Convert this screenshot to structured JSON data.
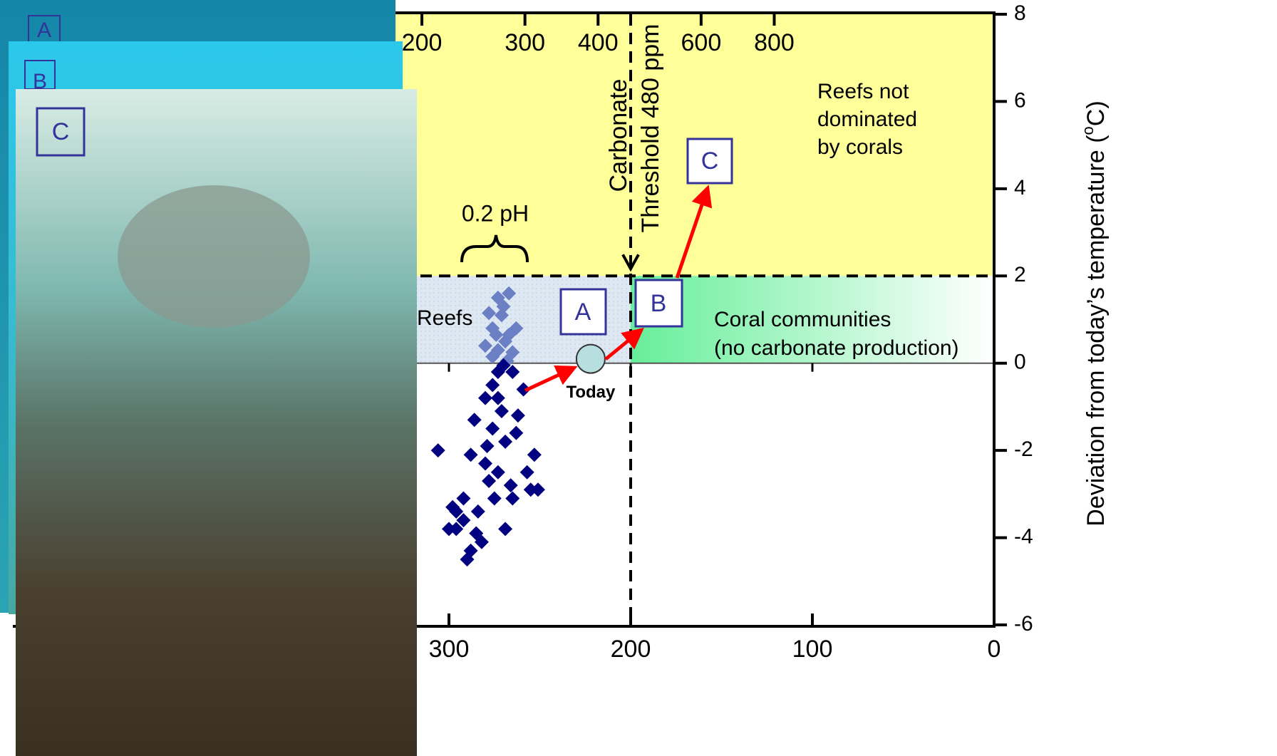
{
  "chart_data": {
    "type": "scatter",
    "xlim": [
      540,
      0
    ],
    "xticks": [
      300,
      200,
      100,
      0
    ],
    "x2lim": [
      40,
      1900
    ],
    "x2scale": "log",
    "x2ticks": [
      200,
      300,
      400,
      600,
      800
    ],
    "ylim": [
      -6,
      8
    ],
    "yticks": [
      8,
      6,
      4,
      2,
      0,
      -2,
      -4,
      -6
    ],
    "y_label": [
      "Deviation from today’s temperature (",
      "o",
      "C)"
    ],
    "series": [
      {
        "color": "#6b7fc4",
        "x": [
          267,
          273,
          271,
          276,
          267,
          273,
          276,
          265,
          278,
          269,
          274,
          263,
          270,
          280,
          268
        ],
        "values": [
          1.6,
          1.5,
          1.1,
          0.8,
          0.65,
          0.3,
          0.15,
          0.25,
          1.15,
          0.5,
          0.65,
          0.8,
          1.3,
          0.4,
          0.05
        ]
      },
      {
        "color": "#000080",
        "x": [
          259,
          273,
          276,
          269,
          280,
          292,
          296,
          288,
          290,
          265,
          253,
          255,
          306,
          273,
          284,
          300,
          276,
          265,
          271,
          280,
          263,
          288,
          275,
          269,
          296,
          282,
          257,
          251,
          286,
          273,
          278,
          262,
          292,
          270,
          285,
          298,
          266,
          279
        ],
        "values": [
          -0.6,
          -0.8,
          -1.5,
          -1.8,
          -2.3,
          -3.1,
          -3.8,
          -4.3,
          -4.5,
          -3.1,
          -2.1,
          -2.9,
          -2.0,
          -2.5,
          -3.4,
          -3.8,
          -0.5,
          -0.2,
          -1.1,
          -0.8,
          -1.6,
          -2.1,
          -3.1,
          -3.8,
          -3.4,
          -4.1,
          -2.5,
          -2.9,
          -1.3,
          -0.2,
          -2.7,
          -1.2,
          -3.6,
          -0.05,
          -3.9,
          -3.3,
          -2.8,
          -1.9
        ]
      }
    ],
    "today": {
      "label": "Today",
      "x": 222,
      "y": 0.1,
      "color": "#b8dfe0"
    },
    "thresholds": {
      "temperature": 2,
      "carbonate": 200,
      "today": 0
    },
    "regions": {
      "not_dominated": {
        "label": [
          "Reefs not",
          "dominated",
          "by corals"
        ],
        "color": "#ffff99"
      },
      "reefs": {
        "label": "Reefs",
        "color": "#dde8f2"
      },
      "communities": {
        "label": [
          "Coral communities",
          "(no carbonate production)"
        ],
        "color": "#66ee99"
      }
    },
    "threshold_label": [
      "Carbonate",
      "Threshold 480 ppm"
    ],
    "brace_label": "0.2 pH",
    "scenario_labels": [
      "A",
      "B",
      "C"
    ],
    "photo_labels": [
      "A",
      "B",
      "C"
    ]
  }
}
